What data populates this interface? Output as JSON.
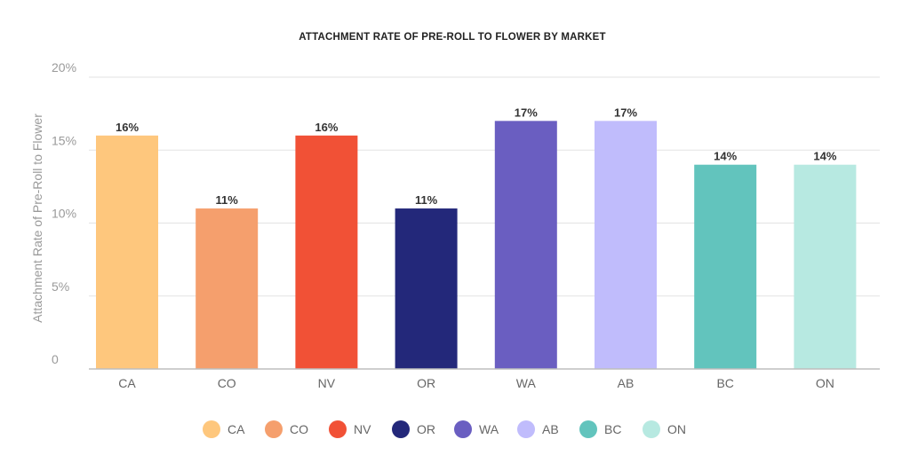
{
  "chart_data": {
    "type": "bar",
    "title": "ATTACHMENT RATE OF PRE-ROLL TO FLOWER BY MARKET",
    "xlabel": "",
    "ylabel": "Attachment Rate of Pre-Roll to Flower",
    "ylim": [
      0,
      20
    ],
    "yticks": [
      0,
      5,
      10,
      15,
      20
    ],
    "ytick_labels": [
      "0",
      "5%",
      "10%",
      "15%",
      "20%"
    ],
    "grid": true,
    "legend_position": "bottom",
    "categories": [
      "CA",
      "CO",
      "NV",
      "OR",
      "WA",
      "AB",
      "BC",
      "ON"
    ],
    "values": [
      16,
      11,
      16,
      11,
      17,
      17,
      14,
      14
    ],
    "value_labels": [
      "16%",
      "11%",
      "16%",
      "11%",
      "17%",
      "17%",
      "14%",
      "14%"
    ],
    "colors": [
      "#FEC77D",
      "#F59F6D",
      "#F15136",
      "#23287A",
      "#6A5EC1",
      "#C0BCFC",
      "#62C4BD",
      "#B7E9E1"
    ],
    "legend": [
      "CA",
      "CO",
      "NV",
      "OR",
      "WA",
      "AB",
      "BC",
      "ON"
    ]
  }
}
